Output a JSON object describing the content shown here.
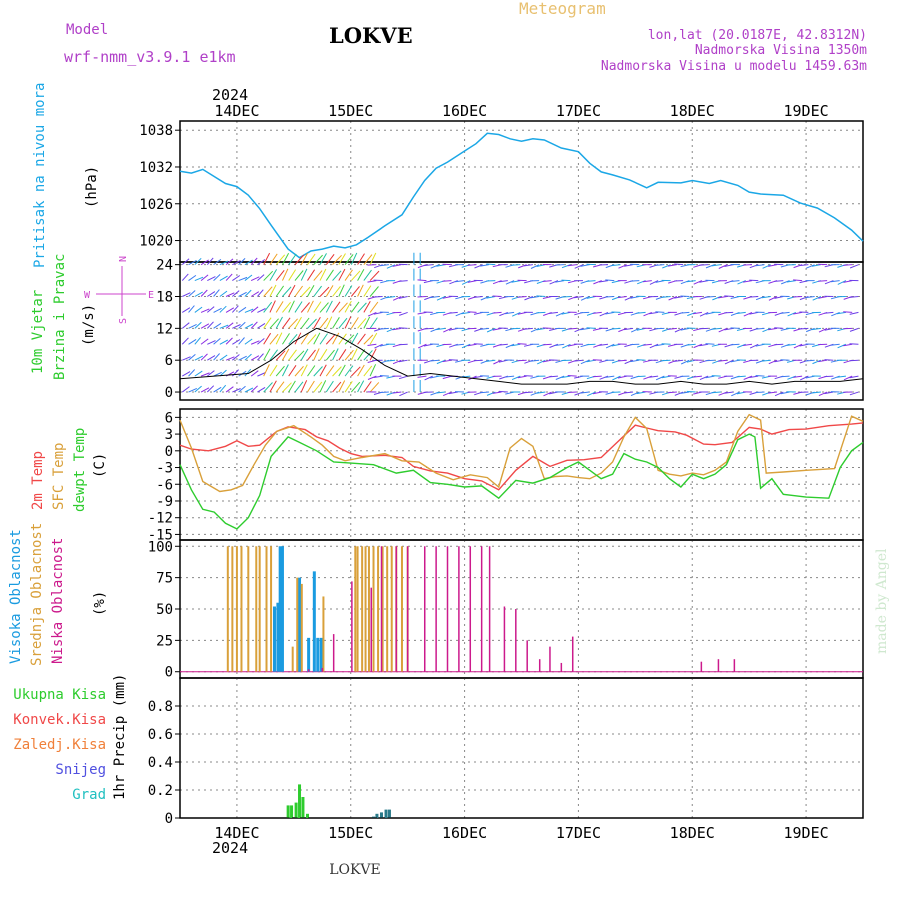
{
  "header": {
    "model_label": "Model",
    "model_name": "wrf-nmm_v3.9.1  e1km",
    "title": "LOKVE",
    "subtitle": "Meteogram",
    "lonlat": "lon,lat (20.0187E, 42.8312N)",
    "altitude": "Nadmorska Visina 1350m",
    "model_altitude": "Nadmorska Visina u modelu 1459.63m",
    "footer": "LOKVE",
    "credit": "made by Angel",
    "year_top": "2024",
    "year_bottom": "2024"
  },
  "colors": {
    "pressure": "#1ba7e6",
    "temp2m": "#f04848",
    "sfc_temp": "#d9a03a",
    "dewpt": "#2ecc2e",
    "high_cloud": "#1a9be0",
    "mid_cloud": "#d9a03a",
    "low_cloud": "#cc1a8c",
    "total_precip": "#2ecc2e",
    "conv_precip": "#f04848",
    "frozen_precip": "#f0803a",
    "snow": "#5050e0",
    "hail": "#20c0c0",
    "wind_label": "#cc44cc"
  },
  "panel_labels": {
    "pressure": [
      "Pritisak na nivou mora",
      "(hPa)"
    ],
    "wind": [
      "10m Vjetar",
      "Brzina i Pravac",
      "(m/s)"
    ],
    "compass": [
      "N",
      "E",
      "W",
      "S"
    ],
    "temp": [
      "2m Temp",
      "SFC Temp",
      "dewpt Temp",
      "(C)"
    ],
    "cloud": [
      "Visoka Oblacnost",
      "Srednja Oblacnost",
      "Niska Oblacnost",
      "(%)"
    ],
    "precip_legend": [
      "Ukupna Kisa",
      "Konvek.Kisa",
      "Zaledj.Kisa",
      "Snijeg",
      "Grad"
    ],
    "precip_axis": "1hr Precip (mm)"
  },
  "chart_data": [
    {
      "type": "line",
      "id": "pressure",
      "ylabel": "Pritisak na nivou mora (hPa)",
      "ylim": [
        1016.5,
        1039.5
      ],
      "yticks": [
        1020,
        1026,
        1032,
        1038
      ],
      "x_day_labels": [
        "14DEC",
        "15DEC",
        "16DEC",
        "17DEC",
        "18DEC",
        "19DEC"
      ],
      "x": [
        13.5,
        13.6,
        13.7,
        13.9,
        14.0,
        14.1,
        14.2,
        14.3,
        14.45,
        14.55,
        14.65,
        14.75,
        14.85,
        14.95,
        15.05,
        15.15,
        15.3,
        15.45,
        15.55,
        15.65,
        15.75,
        15.85,
        16.0,
        16.1,
        16.2,
        16.3,
        16.4,
        16.5,
        16.6,
        16.7,
        16.85,
        17.0,
        17.1,
        17.2,
        17.3,
        17.45,
        17.6,
        17.7,
        17.9,
        18.0,
        18.15,
        18.25,
        18.4,
        18.5,
        18.6,
        18.8,
        18.95,
        19.1,
        19.25,
        19.4,
        19.5
      ],
      "series": [
        {
          "values": [
            1031.3,
            1031.0,
            1031.6,
            1029.3,
            1028.8,
            1027.4,
            1025.2,
            1022.5,
            1018.6,
            1017.2,
            1018.3,
            1018.6,
            1019.1,
            1018.8,
            1019.3,
            1020.5,
            1022.4,
            1024.2,
            1027.1,
            1029.8,
            1031.8,
            1032.8,
            1034.6,
            1035.8,
            1037.5,
            1037.3,
            1036.6,
            1036.2,
            1036.6,
            1036.4,
            1035.1,
            1034.5,
            1032.6,
            1031.2,
            1030.7,
            1029.9,
            1028.6,
            1029.5,
            1029.4,
            1029.8,
            1029.3,
            1029.8,
            1029.0,
            1027.9,
            1027.6,
            1027.4,
            1026.1,
            1025.3,
            1023.7,
            1021.7,
            1019.9
          ]
        }
      ]
    },
    {
      "type": "line",
      "id": "wind",
      "ylabel": "10m Vjetar Brzina i Pravac (m/s)",
      "ylim": [
        -1.5,
        24.5
      ],
      "yticks": [
        0,
        6,
        12,
        18,
        24
      ],
      "x": [
        13.5,
        13.8,
        14.1,
        14.3,
        14.5,
        14.7,
        14.9,
        15.1,
        15.3,
        15.5,
        15.7,
        15.9,
        16.1,
        16.3,
        16.5,
        16.7,
        16.9,
        17.1,
        17.3,
        17.5,
        17.7,
        17.9,
        18.1,
        18.3,
        18.5,
        18.7,
        18.9,
        19.1,
        19.3,
        19.5
      ],
      "series": [
        {
          "values": [
            2.5,
            3.0,
            3.5,
            6.0,
            9.5,
            12.0,
            10.5,
            8.0,
            5.0,
            3.0,
            3.5,
            3.0,
            2.5,
            2.0,
            1.5,
            1.5,
            1.5,
            2.0,
            2.0,
            1.5,
            1.5,
            2.0,
            1.5,
            1.5,
            2.0,
            1.5,
            2.0,
            2.0,
            2.0,
            2.5
          ]
        }
      ]
    },
    {
      "type": "line",
      "id": "temperature",
      "ylabel": "(C)",
      "ylim": [
        -16,
        7.5
      ],
      "yticks": [
        6,
        3,
        0,
        -3,
        -6,
        -9,
        -12,
        -15
      ],
      "series": [
        {
          "name": "2m Temp",
          "x": [
            13.5,
            13.6,
            13.75,
            13.9,
            14.0,
            14.1,
            14.2,
            14.35,
            14.45,
            14.6,
            14.7,
            14.8,
            14.9,
            15.0,
            15.1,
            15.3,
            15.45,
            15.55,
            15.7,
            15.85,
            16.0,
            16.15,
            16.3,
            16.45,
            16.6,
            16.75,
            16.9,
            17.05,
            17.2,
            17.35,
            17.5,
            17.6,
            17.7,
            17.85,
            17.95,
            18.1,
            18.2,
            18.35,
            18.5,
            18.6,
            18.7,
            18.85,
            19.0,
            19.2,
            19.4,
            19.5
          ],
          "values": [
            1.0,
            0.3,
            0.0,
            0.8,
            1.8,
            0.8,
            1.0,
            3.5,
            4.3,
            3.8,
            2.5,
            1.8,
            0.5,
            -0.5,
            -1.0,
            -0.8,
            -1.2,
            -2.8,
            -3.6,
            -4.0,
            -5.0,
            -5.4,
            -7.0,
            -3.5,
            -1.0,
            -2.8,
            -1.7,
            -1.6,
            -1.2,
            1.7,
            4.6,
            4.1,
            3.6,
            3.4,
            2.8,
            1.2,
            1.1,
            1.5,
            4.2,
            3.9,
            3.0,
            3.8,
            3.9,
            4.5,
            4.8,
            5.0
          ]
        },
        {
          "name": "SFC Temp",
          "x": [
            13.5,
            13.6,
            13.7,
            13.85,
            13.95,
            14.05,
            14.15,
            14.25,
            14.35,
            14.5,
            14.65,
            14.75,
            14.85,
            14.95,
            15.1,
            15.3,
            15.45,
            15.6,
            15.75,
            15.9,
            16.05,
            16.2,
            16.3,
            16.4,
            16.5,
            16.6,
            16.7,
            16.8,
            16.9,
            17.0,
            17.1,
            17.2,
            17.3,
            17.4,
            17.5,
            17.6,
            17.7,
            17.8,
            17.9,
            18.0,
            18.1,
            18.2,
            18.3,
            18.4,
            18.5,
            18.6,
            18.65,
            18.8,
            19.0,
            19.25,
            19.4,
            19.5
          ],
          "values": [
            5.5,
            0.5,
            -5.5,
            -7.3,
            -7.0,
            -6.2,
            -2.5,
            1.0,
            3.5,
            4.5,
            2.5,
            1.0,
            -1.0,
            -1.8,
            -1.2,
            -0.5,
            -1.8,
            -2.0,
            -4.0,
            -5.2,
            -4.3,
            -4.8,
            -6.5,
            0.5,
            2.2,
            0.8,
            -5.0,
            -4.6,
            -4.5,
            -4.8,
            -5.0,
            -4.0,
            -2.0,
            2.5,
            6.0,
            4.0,
            -3.5,
            -4.2,
            -4.5,
            -4.0,
            -4.3,
            -3.5,
            -2.0,
            3.5,
            6.5,
            5.5,
            -4.0,
            -3.8,
            -3.5,
            -3.2,
            6.2,
            5.3
          ]
        },
        {
          "name": "dewpt Temp",
          "x": [
            13.5,
            13.6,
            13.7,
            13.8,
            13.9,
            14.0,
            14.1,
            14.2,
            14.3,
            14.45,
            14.55,
            14.7,
            14.85,
            15.0,
            15.2,
            15.4,
            15.55,
            15.7,
            15.85,
            16.0,
            16.15,
            16.3,
            16.45,
            16.6,
            16.75,
            16.9,
            17.0,
            17.1,
            17.2,
            17.3,
            17.4,
            17.5,
            17.6,
            17.7,
            17.8,
            17.9,
            18.0,
            18.1,
            18.2,
            18.3,
            18.4,
            18.5,
            18.55,
            18.6,
            18.7,
            18.8,
            19.0,
            19.2,
            19.3,
            19.4,
            19.5
          ],
          "values": [
            -2.5,
            -7.0,
            -10.5,
            -11.0,
            -13.0,
            -14.0,
            -12.0,
            -8.0,
            -1.0,
            2.5,
            1.5,
            0.0,
            -2.0,
            -2.2,
            -2.5,
            -4.0,
            -3.5,
            -5.7,
            -6.0,
            -6.5,
            -6.3,
            -8.5,
            -5.3,
            -5.8,
            -4.8,
            -3.0,
            -2.0,
            -3.5,
            -5.0,
            -4.2,
            -0.5,
            -1.5,
            -2.0,
            -3.0,
            -5.0,
            -6.5,
            -4.2,
            -5.0,
            -4.2,
            -2.5,
            2.0,
            3.0,
            2.5,
            -6.7,
            -5.0,
            -7.8,
            -8.3,
            -8.5,
            -3.0,
            0.0,
            1.5
          ]
        }
      ]
    },
    {
      "type": "bar",
      "id": "cloud",
      "ylabel": "(%)",
      "ylim": [
        -5,
        105
      ],
      "yticks": [
        0,
        25,
        50,
        75,
        100
      ],
      "series": [
        {
          "name": "Visoka Oblacnost",
          "x": [
            14.33,
            14.36,
            14.38,
            14.4,
            14.55,
            14.63,
            14.68,
            14.71,
            14.74
          ],
          "values": [
            52,
            55,
            100,
            100,
            75,
            27,
            80,
            27,
            27
          ]
        },
        {
          "name": "Srednja Oblacnost",
          "x": [
            13.92,
            13.96,
            14.0,
            14.04,
            14.1,
            14.17,
            14.2,
            14.26,
            14.3,
            14.49,
            14.53,
            14.57,
            14.76,
            15.04,
            15.06,
            15.1,
            15.13,
            15.16,
            15.2,
            15.24,
            15.28,
            15.32,
            15.36,
            15.4,
            15.45,
            15.5
          ],
          "values": [
            100,
            100,
            100,
            100,
            100,
            100,
            100,
            100,
            100,
            20,
            75,
            70,
            60,
            100,
            100,
            100,
            100,
            100,
            100,
            100,
            100,
            100,
            100,
            100,
            100,
            100
          ]
        },
        {
          "name": "Niska Oblacnost",
          "x": [
            14.63,
            14.75,
            14.85,
            15.01,
            15.18,
            15.27,
            15.4,
            15.5,
            15.65,
            15.75,
            15.85,
            15.95,
            16.05,
            16.15,
            16.22,
            16.35,
            16.45,
            16.55,
            16.66,
            16.75,
            16.85,
            16.95,
            18.08,
            18.23,
            18.37
          ],
          "values": [
            2,
            3,
            30,
            72,
            67,
            100,
            100,
            100,
            100,
            100,
            100,
            100,
            100,
            100,
            100,
            52,
            50,
            25,
            10,
            20,
            7,
            28,
            8,
            10,
            10
          ]
        }
      ]
    },
    {
      "type": "bar",
      "id": "precipitation",
      "ylabel": "1hr Precip (mm)",
      "ylim": [
        0,
        1.0
      ],
      "yticks": [
        0,
        0.2,
        0.4,
        0.6,
        0.8
      ],
      "series": [
        {
          "name": "Ukupna Kisa",
          "x": [
            14.45,
            14.48,
            14.52,
            14.55,
            14.58,
            14.62,
            15.2,
            15.23,
            15.27,
            15.31,
            15.34
          ],
          "values": [
            0.09,
            0.09,
            0.11,
            0.24,
            0.15,
            0.03,
            0.01,
            0.03,
            0.04,
            0.06,
            0.06
          ]
        }
      ]
    }
  ]
}
